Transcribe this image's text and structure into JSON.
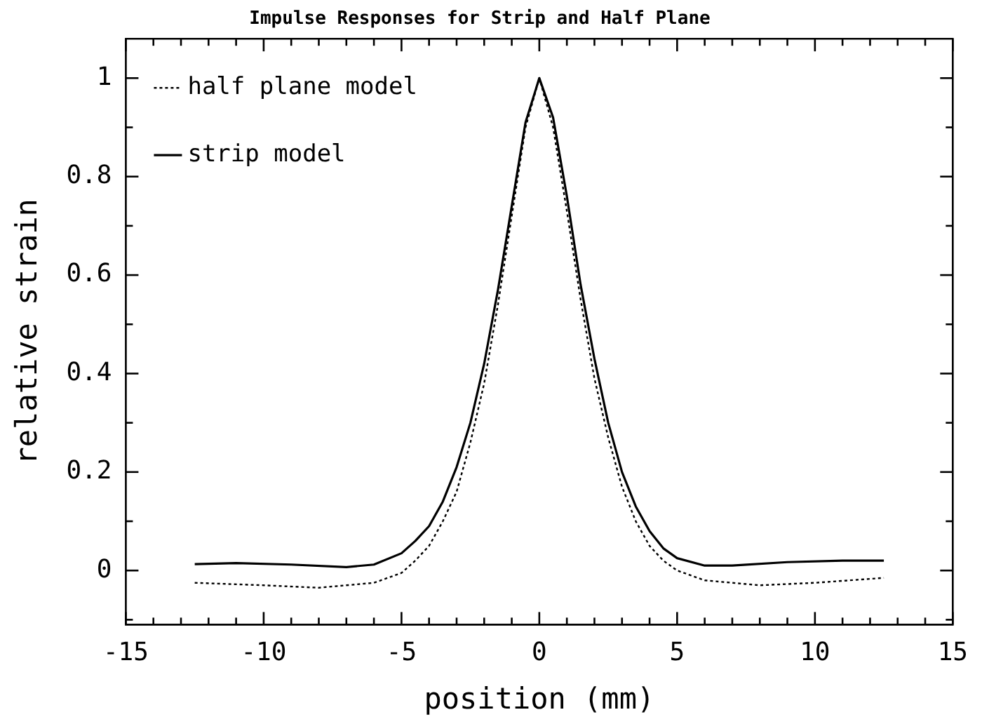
{
  "chart_data": {
    "type": "line",
    "title": "Impulse Responses for Strip and Half Plane",
    "xlabel": "position (mm)",
    "ylabel": "relative strain",
    "xlim": [
      -15,
      15
    ],
    "ylim": [
      -0.11,
      1.08
    ],
    "xticks": [
      -15,
      {
        "value": -14,
        "label": null
      },
      {
        "value": -13,
        "label": null
      },
      {
        "value": -12,
        "label": null
      },
      {
        "value": -11,
        "label": null
      },
      -10,
      {
        "value": -9,
        "label": null
      },
      {
        "value": -8,
        "label": null
      },
      {
        "value": -7,
        "label": null
      },
      {
        "value": -6,
        "label": null
      },
      -5,
      {
        "value": -4,
        "label": null
      },
      {
        "value": -3,
        "label": null
      },
      {
        "value": -2,
        "label": null
      },
      {
        "value": -1,
        "label": null
      },
      0,
      {
        "value": 1,
        "label": null
      },
      {
        "value": 2,
        "label": null
      },
      {
        "value": 3,
        "label": null
      },
      {
        "value": 4,
        "label": null
      },
      5,
      {
        "value": 6,
        "label": null
      },
      {
        "value": 7,
        "label": null
      },
      {
        "value": 8,
        "label": null
      },
      {
        "value": 9,
        "label": null
      },
      10,
      {
        "value": 11,
        "label": null
      },
      {
        "value": 12,
        "label": null
      },
      {
        "value": 13,
        "label": null
      },
      {
        "value": 14,
        "label": null
      },
      15
    ],
    "yticks": [
      {
        "value": -0.1,
        "label": null
      },
      0,
      {
        "value": 0.1,
        "label": null
      },
      0.2,
      {
        "value": 0.3,
        "label": null
      },
      0.4,
      {
        "value": 0.5,
        "label": null
      },
      0.6,
      {
        "value": 0.7,
        "label": null
      },
      0.8,
      {
        "value": 0.9,
        "label": null
      },
      1
    ],
    "grid": false,
    "legend": "top left",
    "marker": "none",
    "series": [
      {
        "name": "half plane model",
        "color": "#000000",
        "line_style": "dotted",
        "x": [
          -12.5,
          -10,
          -8,
          -6,
          -5,
          -4.5,
          -4,
          -3.5,
          -3,
          -2.5,
          -2,
          -1.5,
          -1,
          -0.5,
          0,
          0.5,
          1,
          1.5,
          2,
          2.5,
          3,
          3.5,
          4,
          4.5,
          5,
          6,
          8,
          10,
          12.5
        ],
        "values": [
          -0.025,
          -0.03,
          -0.035,
          -0.025,
          -0.005,
          0.02,
          0.05,
          0.1,
          0.16,
          0.26,
          0.38,
          0.54,
          0.72,
          0.9,
          1.0,
          0.9,
          0.73,
          0.55,
          0.39,
          0.27,
          0.17,
          0.1,
          0.05,
          0.02,
          0.0,
          -0.02,
          -0.03,
          -0.025,
          -0.015
        ]
      },
      {
        "name": "strip model",
        "color": "#000000",
        "line_style": "solid",
        "x": [
          -12.5,
          -11,
          -9,
          -7,
          -6,
          -5,
          -4.5,
          -4,
          -3.5,
          -3,
          -2.5,
          -2,
          -1.5,
          -1,
          -0.5,
          0,
          0.5,
          1,
          1.5,
          2,
          2.5,
          3,
          3.5,
          4,
          4.5,
          5,
          6,
          7,
          9,
          11,
          12.5
        ],
        "values": [
          0.013,
          0.015,
          0.012,
          0.007,
          0.012,
          0.035,
          0.06,
          0.09,
          0.14,
          0.21,
          0.3,
          0.42,
          0.57,
          0.74,
          0.91,
          1.0,
          0.92,
          0.76,
          0.58,
          0.43,
          0.3,
          0.2,
          0.13,
          0.08,
          0.045,
          0.025,
          0.01,
          0.01,
          0.017,
          0.02,
          0.02
        ]
      }
    ]
  }
}
